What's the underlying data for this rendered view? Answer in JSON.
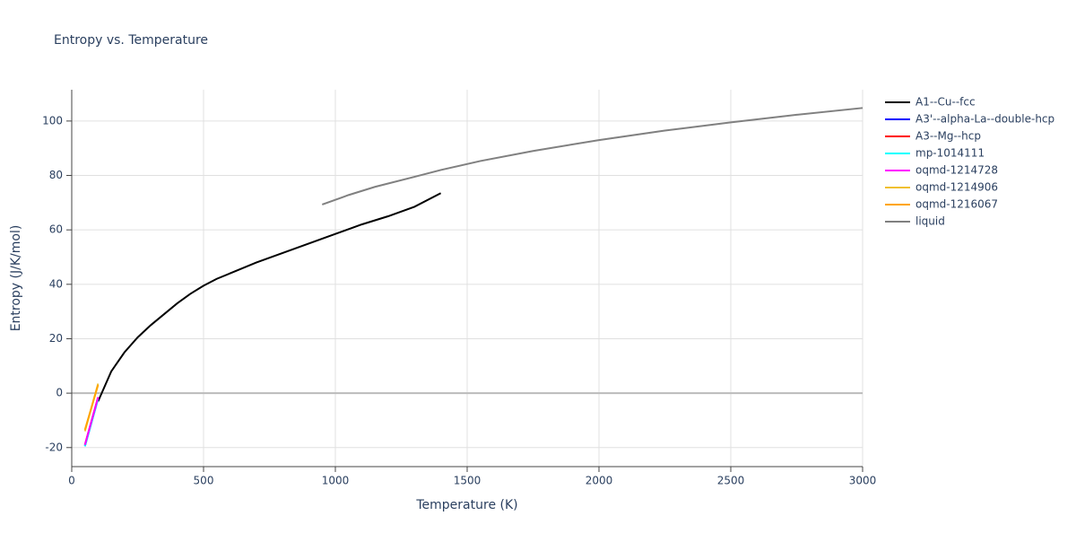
{
  "chart_data": {
    "type": "line",
    "title": "Entropy vs. Temperature",
    "x_label": "Temperature (K)",
    "y_label": "Entropy (J/K/mol)",
    "xlim": [
      0,
      3000
    ],
    "ylim": [
      -27,
      111.5
    ],
    "xticks": [
      0,
      500,
      1000,
      1500,
      2000,
      2500,
      3000
    ],
    "yticks": [
      -20,
      0,
      20,
      40,
      60,
      80,
      100
    ],
    "grid": true,
    "legend": "right",
    "series": [
      {
        "name": "A1--Cu--fcc",
        "color": "#000000",
        "x": [
          100,
          150,
          200,
          250,
          300,
          350,
          400,
          450,
          500,
          550,
          600,
          700,
          800,
          900,
          1000,
          1100,
          1200,
          1300,
          1400
        ],
        "y": [
          -3,
          8,
          15,
          20.5,
          25,
          29,
          33,
          36.5,
          39.5,
          42,
          44,
          48,
          51.5,
          55,
          58.5,
          62,
          65,
          68.5,
          73.5
        ]
      },
      {
        "name": "A3'--alpha-La--double-hcp",
        "color": "#0000ff",
        "x": [
          50,
          100
        ],
        "y": [
          -19.5,
          -2
        ]
      },
      {
        "name": "A3--Mg--hcp",
        "color": "#ff0000",
        "x": [
          50,
          100
        ],
        "y": [
          -19,
          -1.5
        ]
      },
      {
        "name": "mp-1014111",
        "color": "#00ffff",
        "x": [
          50,
          100
        ],
        "y": [
          -19.5,
          -2
        ]
      },
      {
        "name": "oqmd-1214728",
        "color": "#ff00ff",
        "x": [
          50,
          100
        ],
        "y": [
          -19,
          -1.5
        ]
      },
      {
        "name": "oqmd-1214906",
        "color": "#f0c030",
        "x": [
          50,
          100
        ],
        "y": [
          -14,
          3.5
        ]
      },
      {
        "name": "oqmd-1216067",
        "color": "#ffa500",
        "x": [
          50,
          100
        ],
        "y": [
          -13.5,
          3
        ]
      },
      {
        "name": "liquid",
        "color": "#808080",
        "x": [
          950,
          1050,
          1150,
          1300,
          1400,
          1550,
          1750,
          2000,
          2250,
          2500,
          2750,
          3000
        ],
        "y": [
          69.3,
          72.8,
          75.8,
          79.5,
          82,
          85.3,
          89,
          93,
          96.5,
          99.5,
          102.3,
          104.8
        ]
      }
    ]
  }
}
